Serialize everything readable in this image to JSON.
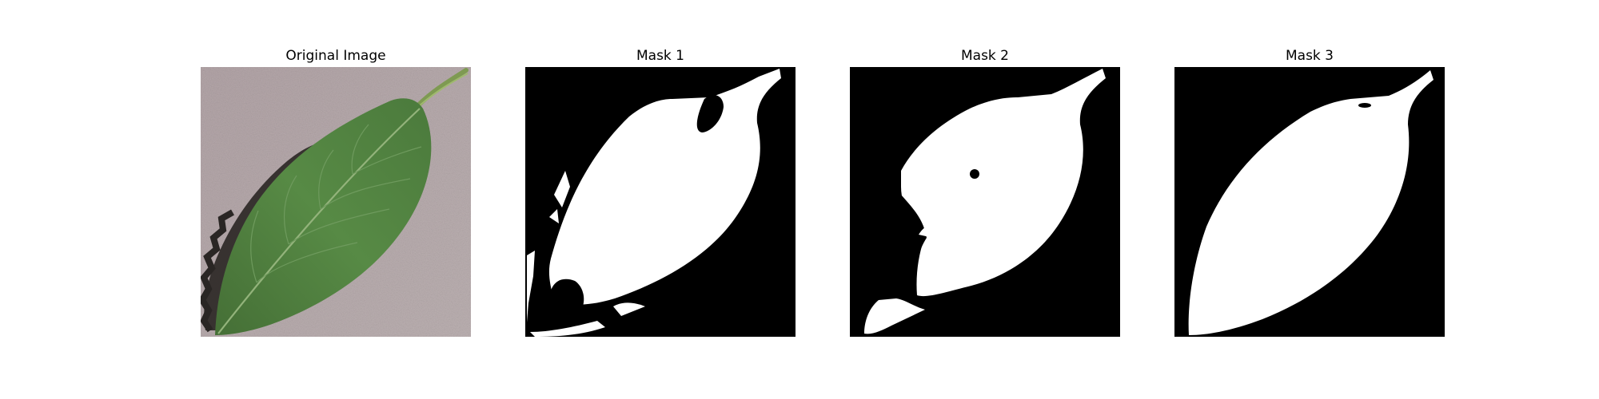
{
  "panels": [
    {
      "title": "Original Image"
    },
    {
      "title": "Mask 1"
    },
    {
      "title": "Mask 2"
    },
    {
      "title": "Mask 3"
    }
  ],
  "colors": {
    "background": "#ffffff",
    "mask_foreground": "#ffffff",
    "mask_background": "#000000",
    "leaf_green": "#4e7e3e",
    "surface_gray": "#b4a8a8"
  }
}
